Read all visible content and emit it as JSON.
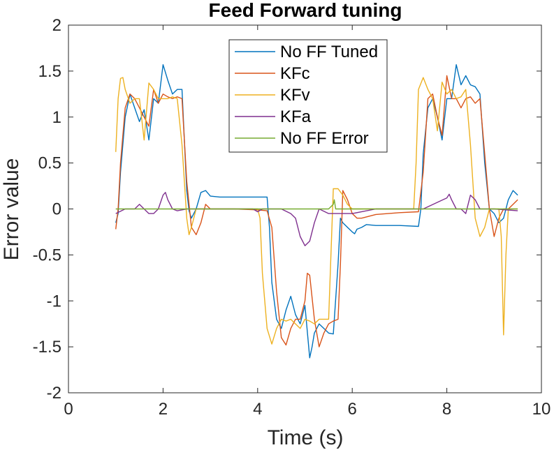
{
  "chart_data": {
    "type": "line",
    "title": "Feed Forward tuning",
    "xlabel": "Time (s)",
    "ylabel": "Error value",
    "xlim": [
      0,
      10
    ],
    "ylim": [
      -2,
      2
    ],
    "xticks": [
      0,
      2,
      4,
      6,
      8,
      10
    ],
    "xtick_labels": [
      "0",
      "2",
      "4",
      "6",
      "8",
      "10"
    ],
    "yticks": [
      -2,
      -1.5,
      -1,
      -0.5,
      0,
      0.5,
      1,
      1.5,
      2
    ],
    "ytick_labels": [
      "-2",
      "-1.5",
      "-1",
      "-0.5",
      "0",
      "0.5",
      "1",
      "1.5",
      "2"
    ],
    "grid": false,
    "legend_position": "top-center",
    "series": [
      {
        "name": "No FF Tuned",
        "color": "#0072BD",
        "x": [
          1.0,
          1.05,
          1.1,
          1.2,
          1.3,
          1.4,
          1.5,
          1.6,
          1.7,
          1.8,
          1.9,
          2.0,
          2.1,
          2.2,
          2.3,
          2.4,
          2.5,
          2.55,
          2.6,
          2.7,
          2.8,
          2.9,
          3.0,
          3.2,
          3.5,
          4.0,
          4.2,
          4.25,
          4.3,
          4.4,
          4.5,
          4.6,
          4.7,
          4.8,
          4.9,
          5.0,
          5.1,
          5.15,
          5.2,
          5.3,
          5.4,
          5.5,
          5.6,
          5.7,
          5.75,
          5.8,
          5.9,
          6.0,
          6.05,
          6.1,
          6.2,
          6.3,
          6.5,
          7.0,
          7.4,
          7.45,
          7.5,
          7.6,
          7.7,
          7.8,
          7.9,
          8.0,
          8.1,
          8.2,
          8.3,
          8.4,
          8.5,
          8.6,
          8.7,
          8.8,
          8.9,
          9.0,
          9.1,
          9.2,
          9.3,
          9.4,
          9.5
        ],
        "y": [
          -0.15,
          -0.05,
          0.4,
          1.0,
          1.25,
          1.1,
          0.95,
          1.08,
          0.75,
          1.2,
          1.15,
          1.57,
          1.4,
          1.25,
          1.3,
          1.3,
          0.2,
          -0.02,
          -0.1,
          0.0,
          0.18,
          0.2,
          0.14,
          0.13,
          0.13,
          0.13,
          0.13,
          -0.2,
          -0.8,
          -1.2,
          -1.3,
          -1.1,
          -0.95,
          -1.15,
          -1.25,
          -1.05,
          -1.62,
          -1.5,
          -1.35,
          -1.25,
          -1.3,
          -1.35,
          -1.36,
          -0.6,
          -0.1,
          -0.15,
          -0.2,
          -0.25,
          -0.27,
          -0.22,
          -0.2,
          -0.17,
          -0.18,
          -0.18,
          -0.19,
          0.0,
          0.6,
          1.1,
          1.2,
          1.0,
          0.75,
          1.2,
          1.2,
          1.57,
          1.35,
          1.45,
          1.35,
          1.33,
          1.25,
          0.5,
          0.0,
          -0.05,
          -0.15,
          -0.1,
          0.1,
          0.2,
          0.15
        ]
      },
      {
        "name": "KFc",
        "color": "#D95319",
        "x": [
          1.0,
          1.05,
          1.1,
          1.2,
          1.3,
          1.4,
          1.5,
          1.6,
          1.7,
          1.8,
          1.9,
          2.0,
          2.1,
          2.2,
          2.3,
          2.4,
          2.5,
          2.6,
          2.7,
          2.8,
          2.9,
          3.0,
          3.2,
          3.5,
          4.0,
          4.2,
          4.3,
          4.4,
          4.5,
          4.6,
          4.7,
          4.8,
          4.9,
          5.0,
          5.05,
          5.1,
          5.2,
          5.3,
          5.4,
          5.5,
          5.6,
          5.7,
          5.75,
          5.8,
          5.9,
          6.0,
          6.1,
          6.2,
          6.5,
          7.0,
          7.4,
          7.5,
          7.6,
          7.7,
          7.8,
          7.9,
          8.0,
          8.1,
          8.2,
          8.3,
          8.4,
          8.5,
          8.6,
          8.7,
          8.8,
          8.9,
          9.0,
          9.1,
          9.2,
          9.3,
          9.4,
          9.5
        ],
        "y": [
          -0.22,
          0.0,
          0.5,
          1.1,
          1.25,
          1.2,
          1.1,
          1.0,
          0.9,
          1.3,
          1.15,
          1.25,
          1.22,
          1.2,
          1.22,
          1.2,
          0.3,
          -0.2,
          -0.28,
          -0.15,
          0.05,
          0.0,
          0.0,
          0.0,
          -0.01,
          -0.02,
          -0.2,
          -0.9,
          -1.4,
          -1.48,
          -1.3,
          -1.2,
          -1.2,
          -1.0,
          -0.7,
          -0.72,
          -1.2,
          -1.5,
          -1.35,
          -1.25,
          -1.22,
          -1.2,
          -0.6,
          0.2,
          0.1,
          -0.05,
          -0.1,
          -0.1,
          -0.06,
          -0.04,
          -0.03,
          0.4,
          1.2,
          1.25,
          1.0,
          0.8,
          1.45,
          1.2,
          1.2,
          1.1,
          1.2,
          1.22,
          1.15,
          1.2,
          0.6,
          0.0,
          -0.3,
          -0.1,
          0.0,
          0.0,
          0.05,
          0.1
        ]
      },
      {
        "name": "KFv",
        "color": "#EDB120",
        "x": [
          1.0,
          1.05,
          1.1,
          1.15,
          1.2,
          1.3,
          1.4,
          1.5,
          1.6,
          1.7,
          1.8,
          1.9,
          2.0,
          2.1,
          2.2,
          2.3,
          2.4,
          2.5,
          2.55,
          2.6,
          2.7,
          2.8,
          3.0,
          3.5,
          4.0,
          4.05,
          4.1,
          4.2,
          4.3,
          4.4,
          4.5,
          4.6,
          4.7,
          4.8,
          4.9,
          5.0,
          5.1,
          5.2,
          5.3,
          5.4,
          5.5,
          5.6,
          5.7,
          5.8,
          5.9,
          6.0,
          6.5,
          7.0,
          7.3,
          7.35,
          7.4,
          7.5,
          7.6,
          7.7,
          7.8,
          7.9,
          8.0,
          8.1,
          8.2,
          8.3,
          8.4,
          8.5,
          8.6,
          8.7,
          8.8,
          8.9,
          9.0,
          9.1,
          9.15,
          9.2,
          9.25,
          9.3,
          9.4,
          9.5
        ],
        "y": [
          0.62,
          1.2,
          1.42,
          1.43,
          1.3,
          1.15,
          1.2,
          1.2,
          0.75,
          1.37,
          1.3,
          1.2,
          1.2,
          1.2,
          1.22,
          1.2,
          0.7,
          -0.1,
          -0.28,
          -0.2,
          0.0,
          0.0,
          0.0,
          0.0,
          0.0,
          -0.1,
          -0.7,
          -1.3,
          -1.47,
          -1.3,
          -1.2,
          -1.22,
          -1.2,
          -1.25,
          -1.3,
          -1.2,
          -1.22,
          -1.25,
          -1.2,
          -1.2,
          -1.2,
          0.22,
          0.22,
          0.15,
          0.05,
          0.0,
          0.0,
          0.0,
          0.0,
          0.5,
          1.3,
          1.43,
          1.3,
          1.2,
          0.85,
          1.38,
          1.25,
          1.3,
          1.2,
          1.22,
          1.3,
          0.7,
          -0.1,
          -0.3,
          -0.2,
          0.0,
          0.0,
          0.0,
          -0.3,
          -1.37,
          -0.5,
          0.0,
          0.0,
          0.0
        ]
      },
      {
        "name": "KFa",
        "color": "#7E2F8E",
        "x": [
          1.0,
          1.2,
          1.4,
          1.5,
          1.6,
          1.7,
          1.8,
          1.9,
          2.0,
          2.05,
          2.1,
          2.2,
          2.3,
          2.5,
          3.0,
          3.5,
          3.9,
          4.0,
          4.1,
          4.5,
          4.7,
          4.8,
          4.9,
          5.0,
          5.1,
          5.2,
          5.3,
          5.5,
          6.0,
          6.5,
          7.0,
          7.5,
          8.0,
          8.05,
          8.1,
          8.2,
          8.3,
          8.4,
          8.5,
          8.6,
          8.7,
          8.8,
          9.0,
          9.5
        ],
        "y": [
          -0.05,
          0.0,
          0.0,
          0.05,
          0.0,
          -0.05,
          -0.05,
          0.0,
          0.15,
          0.18,
          0.1,
          0.0,
          -0.02,
          0.0,
          0.0,
          0.0,
          0.0,
          -0.03,
          0.0,
          0.0,
          -0.05,
          -0.1,
          -0.3,
          -0.4,
          -0.35,
          -0.15,
          0.0,
          -0.05,
          -0.05,
          0.0,
          0.0,
          0.0,
          0.12,
          0.16,
          0.1,
          0.0,
          0.0,
          -0.05,
          0.15,
          0.1,
          0.0,
          0.0,
          0.0,
          -0.02
        ]
      },
      {
        "name": "No FF Error",
        "color": "#77AC30",
        "x": [
          1.0,
          1.5,
          2.0,
          2.5,
          3.0,
          3.5,
          4.0,
          4.5,
          5.0,
          5.5,
          5.6,
          5.62,
          5.65,
          5.7,
          6.0,
          6.5,
          7.0,
          7.5,
          8.0,
          8.5,
          9.0,
          9.5
        ],
        "y": [
          0.0,
          0.0,
          0.0,
          0.0,
          0.0,
          0.0,
          0.0,
          0.0,
          0.0,
          0.0,
          0.05,
          0.1,
          0.0,
          0.0,
          0.0,
          0.0,
          0.0,
          0.0,
          0.0,
          0.0,
          0.0,
          0.0
        ]
      }
    ]
  }
}
